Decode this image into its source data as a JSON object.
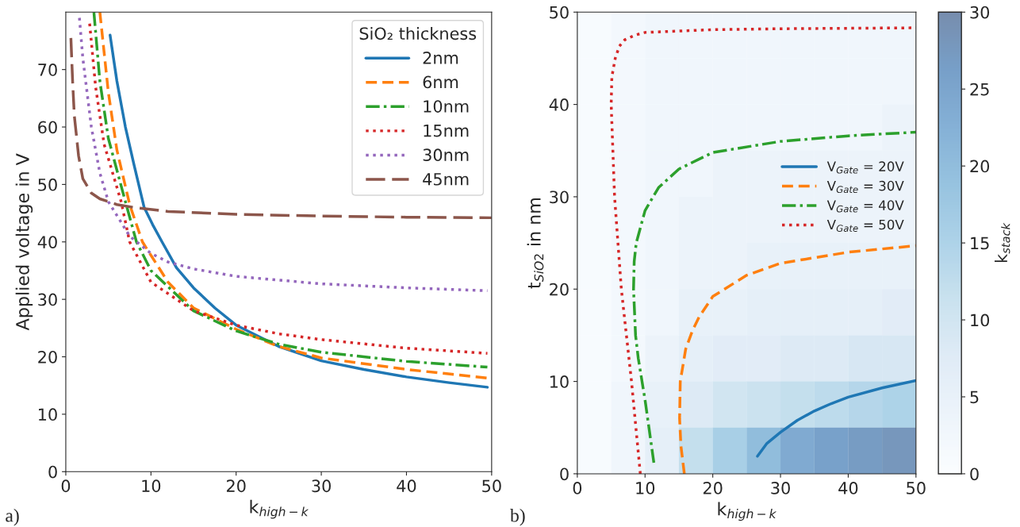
{
  "chart_data": [
    {
      "type": "line",
      "xlabel": "k$_{high−k}$",
      "ylabel": "Applied voltage in V",
      "legend_title": "SiO₂ thickness",
      "legend": "top right",
      "grid": false,
      "xlim": [
        0,
        50
      ],
      "ylim": [
        0,
        80
      ],
      "xticks": [
        0,
        10,
        20,
        30,
        40,
        50
      ],
      "yticks": [
        0,
        10,
        20,
        30,
        40,
        50,
        60,
        70
      ],
      "annotations": [
        "a)"
      ],
      "series": [
        {
          "name": "2nm",
          "color": "#1f77b4",
          "line_style": "solid",
          "x": [
            5.2,
            6,
            7,
            8,
            9.2,
            10.2,
            11.3,
            13,
            15,
            17.5,
            20,
            25,
            30,
            35,
            40,
            45,
            49.5
          ],
          "values": [
            76,
            68,
            60,
            53.5,
            46,
            43,
            40,
            35.5,
            32,
            28.5,
            25.5,
            21.8,
            19.3,
            17.8,
            16.5,
            15.5,
            14.7
          ]
        },
        {
          "name": "6nm",
          "color": "#ff7f0e",
          "line_style": "dashed",
          "x": [
            4.0,
            5,
            6,
            7.5,
            9,
            12,
            15,
            20,
            25,
            30,
            40,
            49.5
          ],
          "values": [
            80,
            66,
            56,
            46.5,
            40,
            33,
            28.5,
            24.8,
            21.8,
            19.8,
            17.8,
            16.3
          ]
        },
        {
          "name": "10nm",
          "color": "#2ca02c",
          "line_style": "dashdot",
          "x": [
            3.3,
            4,
            5,
            7,
            8.3,
            10,
            15,
            20,
            25,
            30,
            40,
            49.5
          ],
          "values": [
            80,
            68,
            58,
            47,
            40,
            35,
            28,
            24.5,
            22.2,
            20.8,
            19.2,
            18.2
          ]
        },
        {
          "name": "15nm",
          "color": "#d62728",
          "line_style": "dotted",
          "x": [
            2.8,
            3.5,
            4.5,
            6.5,
            7.5,
            10,
            15,
            20,
            25,
            30,
            40,
            49.5
          ],
          "values": [
            78,
            67,
            57,
            47,
            40,
            33,
            28,
            25.5,
            24,
            23,
            21.5,
            20.6
          ]
        },
        {
          "name": "30nm",
          "color": "#9467bd",
          "line_style": "dotted",
          "x": [
            1.6,
            2,
            3,
            4,
            5,
            7.5,
            10,
            12,
            15,
            20,
            30,
            40,
            49.5
          ],
          "values": [
            79,
            72,
            60,
            52,
            47,
            41,
            38,
            36.5,
            35.3,
            34,
            32.7,
            32,
            31.5
          ]
        },
        {
          "name": "45nm",
          "color": "#8c564b",
          "line_style": "longdash",
          "x": [
            0.6,
            0.8,
            1,
            1.5,
            2,
            3,
            4,
            6,
            8,
            12,
            20,
            30,
            40,
            50
          ],
          "values": [
            75.5,
            68,
            62,
            55,
            51,
            48.5,
            47.5,
            46.5,
            46,
            45.3,
            44.8,
            44.5,
            44.3,
            44.2
          ]
        }
      ]
    },
    {
      "type": "heatmap",
      "clabel": "k$_{stack}$",
      "tick_labels": false,
      "clim": [
        0,
        30
      ],
      "cticks": [
        0,
        5,
        10,
        15,
        20,
        25,
        30
      ],
      "categories": [
        null,
        null,
        null,
        null,
        null,
        null,
        null,
        null,
        null,
        null
      ],
      "y_categories": [
        null,
        null,
        null,
        null,
        null,
        null,
        null,
        null,
        null,
        null
      ],
      "cells": [
        [
          1,
          2,
          3,
          3,
          3,
          3,
          3,
          3,
          3,
          3
        ],
        [
          1,
          2,
          3,
          3,
          3,
          3,
          3,
          3,
          3,
          3
        ],
        [
          1,
          2,
          3,
          3,
          3,
          3,
          3,
          3,
          3,
          4
        ],
        [
          1,
          2,
          3,
          3,
          4,
          4,
          4,
          4,
          4,
          4
        ],
        [
          1,
          2,
          3,
          4,
          4,
          4,
          4,
          4,
          4,
          4
        ],
        [
          1,
          2,
          3,
          4,
          4,
          5,
          5,
          5,
          5,
          5
        ],
        [
          1,
          2,
          3,
          5,
          5,
          6,
          6,
          6,
          6,
          7
        ],
        [
          1,
          2,
          4,
          6,
          7,
          7,
          8,
          8,
          9,
          9
        ],
        [
          1,
          3,
          5,
          8,
          10,
          11,
          12,
          13,
          14,
          15
        ],
        [
          1,
          3,
          6,
          12,
          16,
          20,
          24,
          26,
          27,
          28
        ]
      ]
    },
    {
      "type": "line",
      "xlabel": "k$_{high−k}$",
      "ylabel": "t$_{SiO2}$ in nm",
      "legend": "right",
      "grid": false,
      "xlim": [
        0,
        50
      ],
      "ylim": [
        0,
        50
      ],
      "xticks": [
        0,
        10,
        20,
        30,
        40,
        50
      ],
      "yticks": [
        0,
        10,
        20,
        30,
        40,
        50
      ],
      "annotations": [
        "b)"
      ],
      "series": [
        {
          "name": "V$_{Gate}$ = 20V",
          "color": "#1f77b4",
          "line_style": "solid",
          "x": [
            26.6,
            28,
            30,
            32.5,
            35,
            37.5,
            40,
            45,
            50
          ],
          "values": [
            1.9,
            3.3,
            4.5,
            5.8,
            6.8,
            7.6,
            8.3,
            9.3,
            10.1
          ]
        },
        {
          "name": "V$_{Gate}$ = 30V",
          "color": "#ff7f0e",
          "line_style": "dashed",
          "x": [
            15.8,
            15.3,
            15.1,
            15.2,
            16,
            17,
            18,
            20,
            25,
            30,
            40,
            50
          ],
          "values": [
            0,
            3,
            6,
            10,
            13.5,
            15.5,
            17,
            19.2,
            21.5,
            22.8,
            24,
            24.7
          ]
        },
        {
          "name": "V$_{Gate}$ = 40V",
          "color": "#2ca02c",
          "line_style": "dashdot",
          "x": [
            11.3,
            10,
            9,
            8.6,
            8.3,
            8.4,
            8.7,
            10,
            12,
            15,
            20,
            30,
            40,
            50
          ],
          "values": [
            1.2,
            8,
            12.5,
            15,
            20,
            23,
            25,
            28.5,
            31,
            33,
            34.8,
            36,
            36.6,
            37
          ]
        },
        {
          "name": "V$_{Gate}$ = 50V",
          "color": "#d62728",
          "line_style": "dotted",
          "x": [
            9.3,
            8,
            6.5,
            5.5,
            5.0,
            5.1,
            5.6,
            6.2,
            7,
            8.5,
            10,
            20,
            30,
            50
          ],
          "values": [
            0,
            10,
            20,
            30,
            40,
            43,
            45,
            46.3,
            47,
            47.5,
            47.8,
            48.1,
            48.2,
            48.3
          ]
        }
      ]
    }
  ]
}
